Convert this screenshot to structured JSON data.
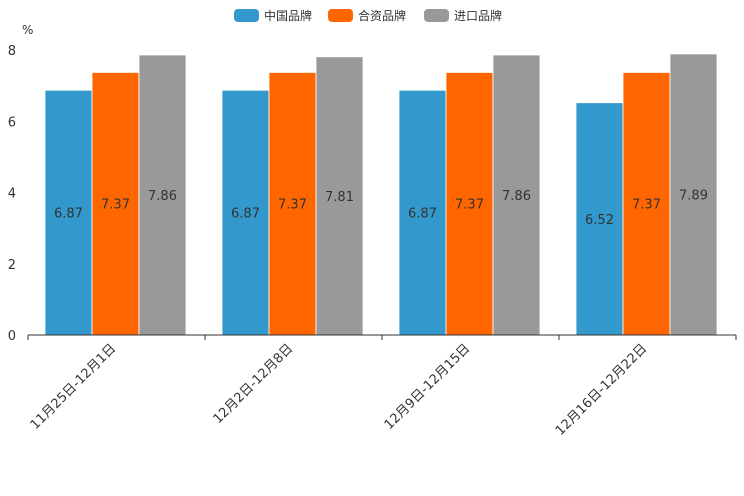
{
  "chart_data": {
    "type": "bar",
    "title": "",
    "ylabel": "%",
    "xlabel": "",
    "ylim": [
      0,
      8
    ],
    "yticks": [
      0,
      2,
      4,
      6,
      8
    ],
    "grid": false,
    "legend_position": "top-center",
    "categories": [
      "11月25日-12月1日",
      "12月2日-12月8日",
      "12月9日-12月15日",
      "12月16日-12月22日"
    ],
    "series": [
      {
        "name": "中国品牌",
        "color": "#3399cc",
        "values": [
          6.87,
          6.87,
          6.87,
          6.52
        ]
      },
      {
        "name": "合资品牌",
        "color": "#ff6600",
        "values": [
          7.37,
          7.37,
          7.37,
          7.37
        ]
      },
      {
        "name": "进口品牌",
        "color": "#999999",
        "values": [
          7.86,
          7.81,
          7.86,
          7.89
        ]
      }
    ]
  }
}
